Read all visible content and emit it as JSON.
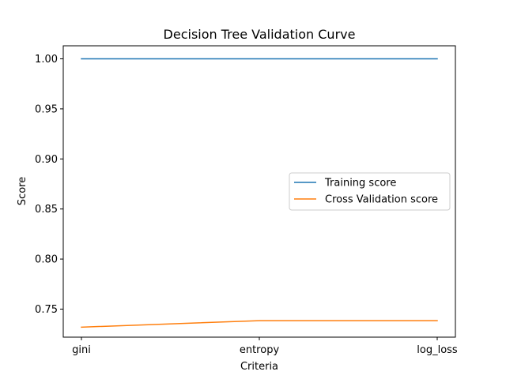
{
  "chart_data": {
    "type": "line",
    "title": "Decision Tree Validation Curve",
    "xlabel": "Criteria",
    "ylabel": "Score",
    "categories": [
      "gini",
      "entropy",
      "log_loss"
    ],
    "ylim": [
      0.722,
      1.013
    ],
    "yticks": [
      "0.75",
      "0.80",
      "0.85",
      "0.90",
      "0.95",
      "1.00"
    ],
    "grid": false,
    "legend_position": "center-right",
    "series": [
      {
        "name": "Training score",
        "values": [
          1.0,
          1.0,
          1.0
        ],
        "color": "#1f77b4"
      },
      {
        "name": "Cross Validation score",
        "values": [
          0.732,
          0.7385,
          0.7385
        ],
        "color": "#ff7f0e"
      }
    ]
  }
}
